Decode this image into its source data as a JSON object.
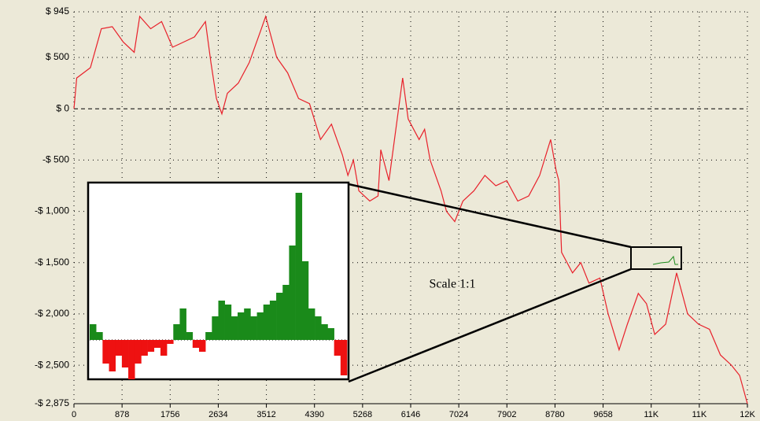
{
  "chart_data": [
    {
      "type": "line",
      "color": "#e8202a",
      "x": [
        0,
        50,
        300,
        500,
        700,
        900,
        1100,
        1200,
        1400,
        1600,
        1800,
        2000,
        2200,
        2400,
        2500,
        2600,
        2700,
        2800,
        3000,
        3200,
        3400,
        3500,
        3700,
        3900,
        4100,
        4300,
        4500,
        4700,
        4900,
        5000,
        5100,
        5200,
        5400,
        5550,
        5600,
        5750,
        5900,
        6000,
        6100,
        6300,
        6400,
        6500,
        6700,
        6800,
        6950,
        7100,
        7300,
        7500,
        7700,
        7900,
        8100,
        8300,
        8500,
        8700,
        8800,
        8850,
        8900,
        9100,
        9250,
        9400,
        9600,
        9750,
        9950,
        10100,
        10300,
        10450,
        10600,
        10800,
        11000,
        11200,
        11400,
        11600,
        11800,
        12000,
        12150,
        12292
      ],
      "values": [
        0,
        300,
        400,
        780,
        800,
        650,
        550,
        900,
        780,
        850,
        600,
        650,
        700,
        850,
        450,
        100,
        -50,
        150,
        250,
        450,
        750,
        900,
        500,
        350,
        100,
        50,
        -300,
        -150,
        -450,
        -650,
        -500,
        -800,
        -900,
        -850,
        -400,
        -700,
        -100,
        300,
        -100,
        -300,
        -200,
        -500,
        -800,
        -1000,
        -1100,
        -900,
        -800,
        -650,
        -750,
        -700,
        -900,
        -850,
        -650,
        -300,
        -600,
        -700,
        -1400,
        -1600,
        -1500,
        -1700,
        -1650,
        -2000,
        -2350,
        -2100,
        -1800,
        -1900,
        -2200,
        -2100,
        -1600,
        -2000,
        -2100,
        -2150,
        -2400,
        -2500,
        -2600,
        -2875
      ],
      "xlim": [
        0,
        12292
      ],
      "xticks": [
        0,
        878,
        1756,
        2634,
        3512,
        4390,
        5268,
        6146,
        7024,
        7902,
        8780,
        9658,
        {
          "value": 10536,
          "label": "11K"
        },
        {
          "value": 11414,
          "label": "11K"
        },
        {
          "value": 12292,
          "label": "12K"
        }
      ],
      "ylim": [
        -2875,
        945
      ],
      "yticks": [
        {
          "value": 945,
          "label": "$ 945"
        },
        {
          "value": 500,
          "label": "$ 500"
        },
        {
          "value": 0,
          "label": "$ 0"
        },
        {
          "value": -500,
          "label": "-$ 500"
        },
        {
          "value": -1000,
          "label": "-$ 1,000"
        },
        {
          "value": -1500,
          "label": "-$ 1,500"
        },
        {
          "value": -2000,
          "label": "-$ 2,000"
        },
        {
          "value": -2500,
          "label": "-$ 2,500"
        },
        {
          "value": -2875,
          "label": "-$ 2,875"
        }
      ],
      "grid": true
    },
    {
      "type": "area",
      "annotation": "Scale 1:1",
      "color": "#1a8a1a",
      "negative_color": "#ee1111",
      "values": [
        20,
        10,
        -30,
        -40,
        -20,
        -35,
        -50,
        -30,
        -20,
        -15,
        -10,
        -20,
        -5,
        20,
        40,
        10,
        -10,
        -15,
        10,
        30,
        50,
        45,
        30,
        35,
        40,
        30,
        35,
        45,
        50,
        60,
        70,
        120,
        187,
        100,
        40,
        30,
        20,
        15,
        -20,
        -45
      ]
    }
  ]
}
